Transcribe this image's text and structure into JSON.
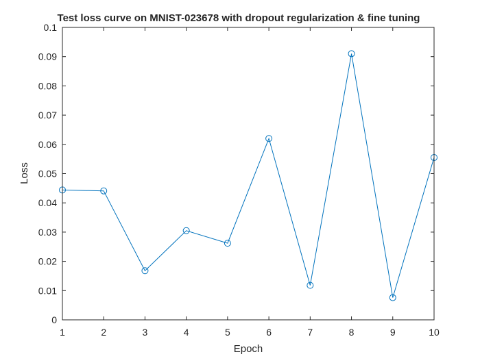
{
  "chart_data": {
    "type": "line",
    "title": "Test loss curve on MNIST-023678 with dropout regularization & fine tuning",
    "xlabel": "Epoch",
    "ylabel": "Loss",
    "xlim": [
      1,
      10
    ],
    "ylim": [
      0,
      0.1
    ],
    "xticks": [
      "1",
      "2",
      "3",
      "4",
      "5",
      "6",
      "7",
      "8",
      "9",
      "10"
    ],
    "yticks": [
      "0",
      "0.01",
      "0.02",
      "0.03",
      "0.04",
      "0.05",
      "0.06",
      "0.07",
      "0.08",
      "0.09",
      "0.1"
    ],
    "grid": false,
    "series": [
      {
        "x": [
          1,
          2,
          3,
          4,
          5,
          6,
          7,
          8,
          9,
          10
        ],
        "y": [
          0.0444,
          0.0441,
          0.0168,
          0.0305,
          0.0262,
          0.062,
          0.0118,
          0.091,
          0.0076,
          0.0555
        ],
        "color": "#0072BD",
        "marker": "circle"
      }
    ]
  }
}
